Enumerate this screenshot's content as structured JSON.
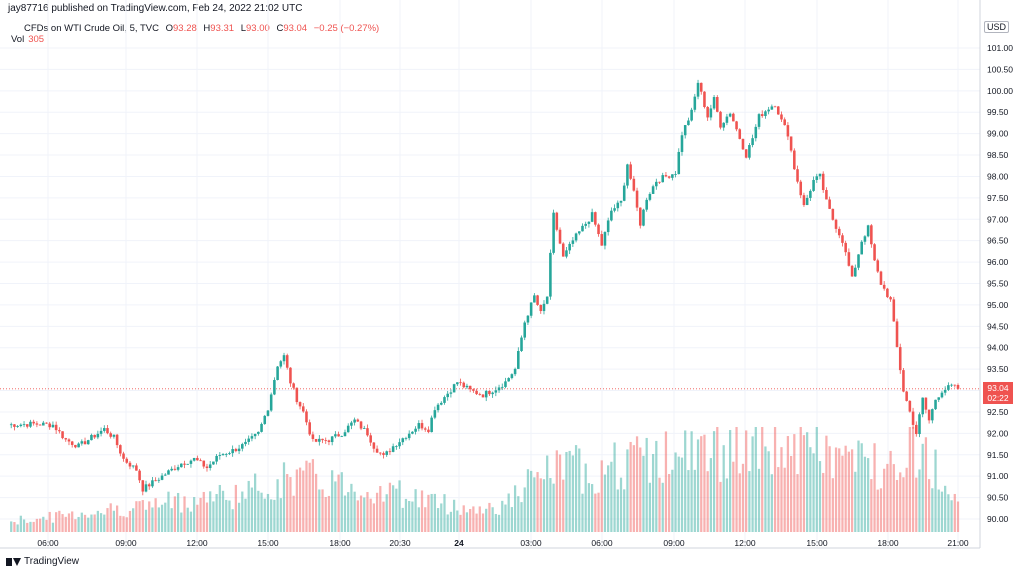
{
  "header": {
    "publisher": "jay87716 published on TradingView.com, Feb 24, 2022 21:02 UTC"
  },
  "legend": {
    "symbol": "CFDs on WTI Crude Oil, 5, TVC",
    "o_label": "O",
    "o_value": "93.28",
    "h_label": "H",
    "h_value": "93.31",
    "l_label": "L",
    "l_value": "93.00",
    "c_label": "C",
    "c_value": "93.04",
    "change": "−0.25 (−0.27%)",
    "vol_label": "Vol",
    "vol_value": "305"
  },
  "axis": {
    "currency": "USD",
    "last_price": "93.04",
    "countdown": "02:22"
  },
  "brand": {
    "name": "TradingView"
  },
  "colors": {
    "up": "#26a69a",
    "down": "#ef5350",
    "grid": "#f0f3fa",
    "last_line": "#ef5350"
  },
  "chart_data": {
    "type": "candlestick",
    "y_ticks": [
      "101.00",
      "100.50",
      "100.00",
      "99.50",
      "99.00",
      "98.50",
      "98.00",
      "97.50",
      "97.00",
      "96.50",
      "96.00",
      "95.50",
      "95.00",
      "94.50",
      "94.00",
      "93.50",
      "93.00",
      "92.50",
      "92.00",
      "91.50",
      "91.00",
      "90.50",
      "90.00"
    ],
    "ylim": [
      89.8,
      101.3
    ],
    "x_ticks": [
      "06:00",
      "09:00",
      "12:00",
      "15:00",
      "18:00",
      "20:30",
      "24",
      "03:00",
      "06:00",
      "09:00",
      "12:00",
      "15:00",
      "18:00",
      "21:00"
    ],
    "grid": true,
    "last_close": 93.04,
    "close_path": [
      [
        0,
        92.2
      ],
      [
        8,
        92.22
      ],
      [
        14,
        92.2
      ],
      [
        18,
        91.85
      ],
      [
        22,
        91.7
      ],
      [
        26,
        91.9
      ],
      [
        30,
        92.1
      ],
      [
        33,
        91.9
      ],
      [
        36,
        91.4
      ],
      [
        40,
        91.15
      ],
      [
        42,
        90.7
      ],
      [
        46,
        90.9
      ],
      [
        50,
        91.1
      ],
      [
        54,
        91.3
      ],
      [
        58,
        91.4
      ],
      [
        62,
        91.2
      ],
      [
        66,
        91.5
      ],
      [
        70,
        91.6
      ],
      [
        74,
        91.75
      ],
      [
        78,
        92.0
      ],
      [
        81,
        92.6
      ],
      [
        84,
        93.6
      ],
      [
        86,
        93.8
      ],
      [
        88,
        93.2
      ],
      [
        90,
        92.8
      ],
      [
        92,
        92.5
      ],
      [
        95,
        91.8
      ],
      [
        100,
        91.85
      ],
      [
        104,
        92.0
      ],
      [
        108,
        92.3
      ],
      [
        112,
        92.0
      ],
      [
        114,
        91.7
      ],
      [
        117,
        91.45
      ],
      [
        120,
        91.7
      ],
      [
        124,
        91.95
      ],
      [
        128,
        92.2
      ],
      [
        131,
        92.1
      ],
      [
        133,
        92.6
      ],
      [
        136,
        92.85
      ],
      [
        140,
        93.2
      ],
      [
        144,
        93.0
      ],
      [
        148,
        92.9
      ],
      [
        152,
        93.05
      ],
      [
        155,
        93.2
      ],
      [
        158,
        93.5
      ],
      [
        161,
        94.6
      ],
      [
        164,
        95.2
      ],
      [
        166,
        94.8
      ],
      [
        168,
        95.2
      ],
      [
        170,
        97.1
      ],
      [
        173,
        96.1
      ],
      [
        176,
        96.5
      ],
      [
        179,
        96.8
      ],
      [
        182,
        97.1
      ],
      [
        185,
        96.4
      ],
      [
        188,
        97.2
      ],
      [
        191,
        97.4
      ],
      [
        193,
        98.3
      ],
      [
        195,
        97.6
      ],
      [
        197,
        96.9
      ],
      [
        199,
        97.5
      ],
      [
        202,
        97.9
      ],
      [
        205,
        98.0
      ],
      [
        208,
        98.1
      ],
      [
        210,
        99.0
      ],
      [
        213,
        99.5
      ],
      [
        215,
        100.2
      ],
      [
        218,
        99.4
      ],
      [
        220,
        99.8
      ],
      [
        222,
        99.2
      ],
      [
        225,
        99.5
      ],
      [
        228,
        98.9
      ],
      [
        230,
        98.5
      ],
      [
        232,
        98.9
      ],
      [
        234,
        99.4
      ],
      [
        237,
        99.6
      ],
      [
        239,
        99.7
      ],
      [
        241,
        99.3
      ],
      [
        243,
        99.0
      ],
      [
        245,
        98.2
      ],
      [
        248,
        97.3
      ],
      [
        251,
        97.9
      ],
      [
        253,
        98.0
      ],
      [
        255,
        97.4
      ],
      [
        257,
        97.0
      ],
      [
        260,
        96.5
      ],
      [
        263,
        95.6
      ],
      [
        266,
        96.5
      ],
      [
        268,
        96.8
      ],
      [
        270,
        96.0
      ],
      [
        272,
        95.5
      ],
      [
        275,
        95.1
      ],
      [
        277,
        94.0
      ],
      [
        279,
        93.0
      ],
      [
        281,
        92.5
      ],
      [
        283,
        92.0
      ],
      [
        285,
        92.8
      ],
      [
        287,
        92.3
      ],
      [
        289,
        92.8
      ],
      [
        291,
        93.0
      ],
      [
        294,
        93.1
      ],
      [
        296,
        93.04
      ]
    ],
    "volume": {
      "unit": "contracts",
      "profile": [
        [
          0,
          120
        ],
        [
          10,
          150
        ],
        [
          25,
          220
        ],
        [
          45,
          300
        ],
        [
          60,
          380
        ],
        [
          72,
          420
        ],
        [
          80,
          500
        ],
        [
          90,
          620
        ],
        [
          100,
          560
        ],
        [
          112,
          480
        ],
        [
          124,
          420
        ],
        [
          135,
          320
        ],
        [
          145,
          250
        ],
        [
          155,
          300
        ],
        [
          162,
          520
        ],
        [
          172,
          720
        ],
        [
          182,
          680
        ],
        [
          192,
          760
        ],
        [
          202,
          820
        ],
        [
          212,
          860
        ],
        [
          222,
          900
        ],
        [
          232,
          880
        ],
        [
          242,
          950
        ],
        [
          252,
          900
        ],
        [
          262,
          800
        ],
        [
          272,
          760
        ],
        [
          282,
          1000
        ],
        [
          290,
          650
        ],
        [
          296,
          305
        ]
      ]
    }
  }
}
